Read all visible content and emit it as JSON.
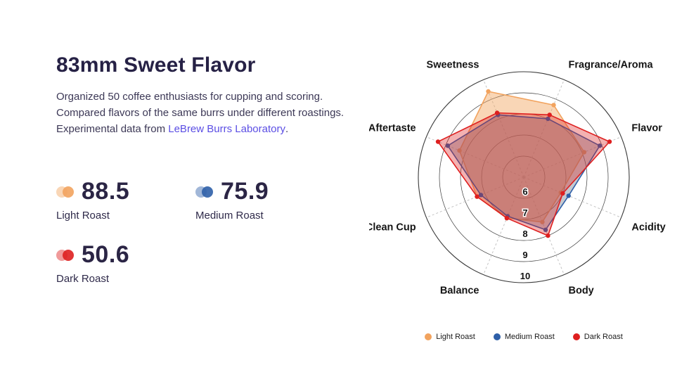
{
  "page": {
    "title": "83mm Sweet Flavor"
  },
  "description": {
    "line1": "Organized 50 coffee enthusiasts for cupping and scoring.",
    "line2": "Compared flavors of the same burrs under different roastings.",
    "line3_prefix": "Experimental data from ",
    "line3_link": "LeBrew Burrs Laboratory",
    "line3_suffix": "."
  },
  "colors": {
    "link": "#5b4ee4",
    "title": "#262145",
    "body_text": "#3c3856",
    "light_roast": "#f2a35e",
    "medium_roast": "#2e5fa8",
    "dark_roast": "#de1f1f"
  },
  "stats": [
    {
      "label": "Light Roast",
      "value": "88.5",
      "color": "#f2a35e"
    },
    {
      "label": "Medium Roast",
      "value": "75.9",
      "color": "#2e5fa8"
    },
    {
      "label": "Dark Roast",
      "value": "50.6",
      "color": "#de1f1f"
    }
  ],
  "chart_data": {
    "type": "radar",
    "title": "",
    "categories": [
      "Sweetness",
      "Fragrance/Aroma",
      "Flavor",
      "Acidity",
      "Body",
      "Balance",
      "Clean Cup",
      "Aftertaste"
    ],
    "min": 5,
    "max": 10,
    "ticks": [
      6,
      7,
      8,
      9,
      10
    ],
    "grid": true,
    "legend_position": "bottom",
    "series": [
      {
        "name": "Light Roast",
        "color": "#f2a35e",
        "fill": "rgba(242,163,94,0.45)",
        "values": [
          9.4,
          8.7,
          8.1,
          6.9,
          7.3,
          7.1,
          7.4,
          8.3
        ]
      },
      {
        "name": "Medium Roast",
        "color": "#2e5fa8",
        "fill": "rgba(125,135,150,0.45)",
        "values": [
          8.2,
          8.0,
          8.9,
          7.3,
          7.7,
          7.0,
          7.2,
          8.9
        ]
      },
      {
        "name": "Dark Roast",
        "color": "#de1f1f",
        "fill": "rgba(222,31,31,0.35)",
        "values": [
          8.3,
          8.2,
          9.4,
          7.0,
          8.0,
          7.1,
          7.4,
          9.4
        ]
      }
    ]
  }
}
